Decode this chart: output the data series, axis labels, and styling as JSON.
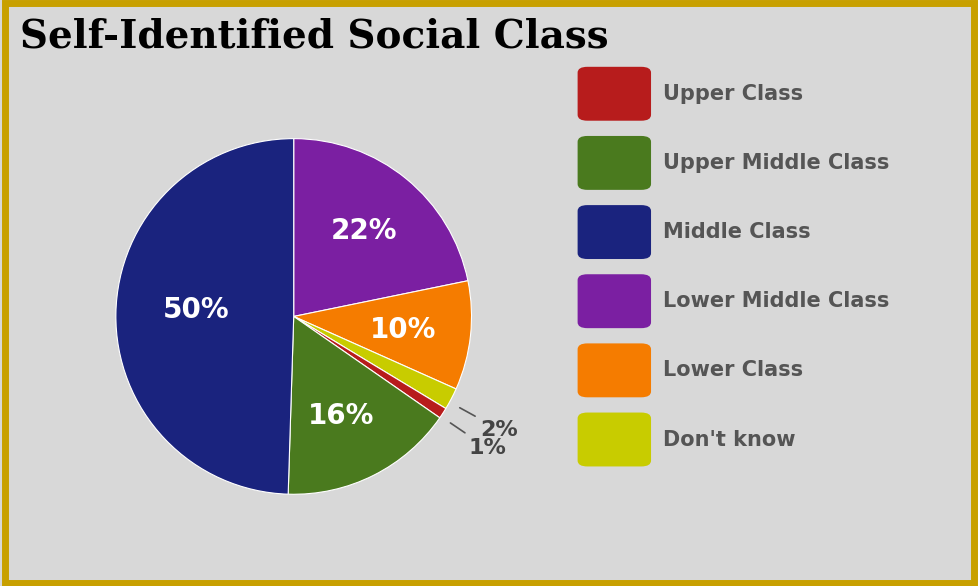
{
  "title": "Self-Identified Social Class",
  "labels": [
    "Upper Class",
    "Upper Middle Class",
    "Middle Class",
    "Lower Middle Class",
    "Lower Class",
    "Don't know"
  ],
  "values": [
    1,
    16,
    50,
    22,
    10,
    2
  ],
  "colors": [
    "#b71c1c",
    "#4a7a1e",
    "#1a237e",
    "#7b1fa2",
    "#f57c00",
    "#c8cc00"
  ],
  "background_color": "#d8d8d8",
  "border_color": "#c8a000",
  "title_fontsize": 28,
  "legend_fontsize": 15,
  "pct_fontsize": 20,
  "startangle": 90,
  "wedge_order": [
    3,
    4,
    5,
    0,
    1,
    2
  ],
  "wedge_labels": [
    "1%",
    "16%",
    "50%",
    "22%",
    "10%",
    "2%"
  ]
}
